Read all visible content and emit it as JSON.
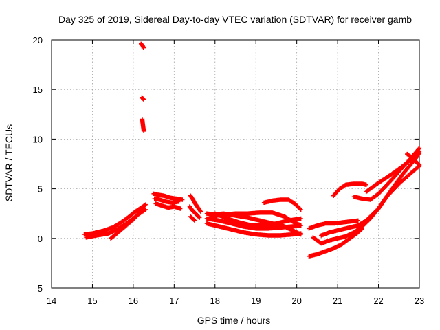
{
  "chart_data": {
    "type": "scatter",
    "title": "Day 325 of 2019, Sidereal Day-to-day VTEC variation (SDTVAR) for receiver gamb",
    "xlabel": "GPS time / hours",
    "ylabel": "SDTVAR / TECUs",
    "xlim": [
      14,
      23
    ],
    "ylim": [
      -5,
      20
    ],
    "x_ticks": [
      "14",
      "15",
      "16",
      "17",
      "18",
      "19",
      "20",
      "21",
      "22",
      "23"
    ],
    "y_ticks": [
      "-5",
      "0",
      "5",
      "10",
      "15",
      "20"
    ],
    "x_tick_values": [
      14,
      15,
      16,
      17,
      18,
      19,
      20,
      21,
      22,
      23
    ],
    "y_tick_values": [
      -5,
      0,
      5,
      10,
      15,
      20
    ],
    "grid": true,
    "marker": "+",
    "series": [
      {
        "name": "SDTVAR",
        "color": "#ff0000",
        "tracks": [
          {
            "x": [
              14.8,
              15.0,
              15.3,
              15.5,
              15.7,
              15.9,
              16.05,
              16.2,
              16.3
            ],
            "y": [
              0.4,
              0.5,
              0.8,
              1.1,
              1.6,
              2.2,
              2.7,
              3.1,
              3.4
            ]
          },
          {
            "x": [
              14.85,
              15.1,
              15.4,
              15.6,
              15.8,
              16.0,
              16.15,
              16.3
            ],
            "y": [
              0.1,
              0.3,
              0.5,
              0.9,
              1.4,
              2.0,
              2.5,
              2.9
            ]
          },
          {
            "x": [
              15.45,
              15.6,
              15.8,
              16.0,
              16.15,
              16.25
            ],
            "y": [
              0.0,
              0.5,
              1.2,
              1.9,
              2.6,
              3.2
            ]
          },
          {
            "x": [
              16.19,
              16.21,
              16.23,
              16.25
            ],
            "y": [
              19.6,
              19.5,
              19.4,
              19.2
            ]
          },
          {
            "x": [
              16.21,
              16.23,
              16.25
            ],
            "y": [
              14.2,
              14.1,
              14.0
            ]
          },
          {
            "x": [
              16.22,
              16.23,
              16.24,
              16.25,
              16.26
            ],
            "y": [
              12.0,
              11.6,
              11.3,
              11.0,
              10.8
            ]
          },
          {
            "x": [
              16.5,
              16.6,
              16.75,
              16.9,
              17.05,
              17.2
            ],
            "y": [
              4.5,
              4.4,
              4.3,
              4.1,
              4.0,
              3.9
            ]
          },
          {
            "x": [
              16.52,
              16.65,
              16.8,
              16.95,
              17.1
            ],
            "y": [
              4.0,
              3.9,
              3.7,
              3.6,
              3.7
            ]
          },
          {
            "x": [
              16.55,
              16.7,
              16.85,
              17.0,
              17.15
            ],
            "y": [
              3.5,
              3.3,
              3.1,
              3.2,
              3.0
            ]
          },
          {
            "x": [
              17.4,
              17.45,
              17.5,
              17.55,
              17.6,
              17.65
            ],
            "y": [
              4.3,
              4.0,
              3.6,
              3.3,
              3.0,
              2.7
            ]
          },
          {
            "x": [
              17.38,
              17.45,
              17.55,
              17.62
            ],
            "y": [
              3.2,
              2.8,
              2.4,
              2.1
            ]
          },
          {
            "x": [
              17.4,
              17.45,
              17.5
            ],
            "y": [
              2.2,
              2.0,
              1.8
            ]
          },
          {
            "x": [
              17.8,
              18.0,
              18.2,
              18.5,
              18.8,
              19.1,
              19.4,
              19.7,
              19.9,
              20.1
            ],
            "y": [
              2.5,
              2.4,
              2.5,
              2.3,
              2.1,
              1.8,
              1.5,
              1.2,
              0.8,
              0.4
            ]
          },
          {
            "x": [
              17.8,
              18.1,
              18.4,
              18.7,
              19.0,
              19.3,
              19.6,
              19.9,
              20.1
            ],
            "y": [
              2.0,
              1.8,
              1.5,
              1.2,
              1.0,
              1.0,
              1.1,
              1.2,
              1.3
            ]
          },
          {
            "x": [
              17.8,
              18.1,
              18.4,
              18.7,
              19.0,
              19.3,
              19.6,
              19.9,
              20.1
            ],
            "y": [
              1.5,
              1.2,
              0.9,
              0.6,
              0.4,
              0.3,
              0.3,
              0.4,
              0.5
            ]
          },
          {
            "x": [
              17.9,
              18.2,
              18.5,
              18.8,
              19.1,
              19.4,
              19.7,
              19.9,
              20.1
            ],
            "y": [
              2.2,
              2.4,
              2.5,
              2.5,
              2.6,
              2.6,
              2.2,
              1.7,
              1.3
            ]
          },
          {
            "x": [
              18.0,
              18.3,
              18.6,
              18.9,
              19.2,
              19.5,
              19.8,
              20.1
            ],
            "y": [
              2.5,
              2.0,
              1.6,
              1.3,
              1.3,
              1.5,
              1.8,
              2.0
            ]
          },
          {
            "x": [
              19.2,
              19.4,
              19.6,
              19.8,
              19.95,
              20.1
            ],
            "y": [
              3.6,
              3.8,
              3.9,
              3.9,
              3.5,
              2.9
            ]
          },
          {
            "x": [
              20.3,
              20.5,
              20.7,
              20.9,
              21.1,
              21.3,
              21.5,
              21.6
            ],
            "y": [
              -1.8,
              -1.6,
              -1.3,
              -1.0,
              -0.6,
              0.0,
              0.6,
              1.0
            ]
          },
          {
            "x": [
              20.3,
              20.5,
              20.7,
              20.9,
              21.1,
              21.3,
              21.5
            ],
            "y": [
              1.0,
              1.3,
              1.5,
              1.5,
              1.6,
              1.7,
              1.8
            ]
          },
          {
            "x": [
              20.4,
              20.6,
              20.8,
              21.0,
              21.2,
              21.4,
              21.6,
              21.8,
              22.0,
              22.2,
              22.5,
              22.8,
              23.0
            ],
            "y": [
              0.1,
              -0.5,
              -0.2,
              0.0,
              0.2,
              0.6,
              1.2,
              2.0,
              3.0,
              4.2,
              5.5,
              6.6,
              7.3
            ]
          },
          {
            "x": [
              20.6,
              20.8,
              21.0,
              21.2,
              21.5,
              21.7,
              22.0,
              22.3,
              22.6,
              22.9,
              23.0
            ],
            "y": [
              0.3,
              0.6,
              0.8,
              1.0,
              1.3,
              1.8,
              3.0,
              4.8,
              6.5,
              8.0,
              8.6
            ]
          },
          {
            "x": [
              20.9,
              21.05,
              21.2,
              21.4,
              21.6,
              21.7
            ],
            "y": [
              4.3,
              5.0,
              5.4,
              5.5,
              5.5,
              5.4
            ]
          },
          {
            "x": [
              21.4,
              21.6,
              21.8,
              22.0,
              22.3,
              22.6,
              22.9,
              23.0
            ],
            "y": [
              4.2,
              4.0,
              3.9,
              4.5,
              5.8,
              7.2,
              8.6,
              9.1
            ]
          },
          {
            "x": [
              21.7,
              22.0,
              22.3,
              22.6,
              22.9,
              23.0
            ],
            "y": [
              4.7,
              5.6,
              6.4,
              7.3,
              8.3,
              8.8
            ]
          },
          {
            "x": [
              22.7,
              22.8,
              22.9,
              23.0
            ],
            "y": [
              8.5,
              8.2,
              7.8,
              7.4
            ]
          }
        ]
      }
    ]
  }
}
